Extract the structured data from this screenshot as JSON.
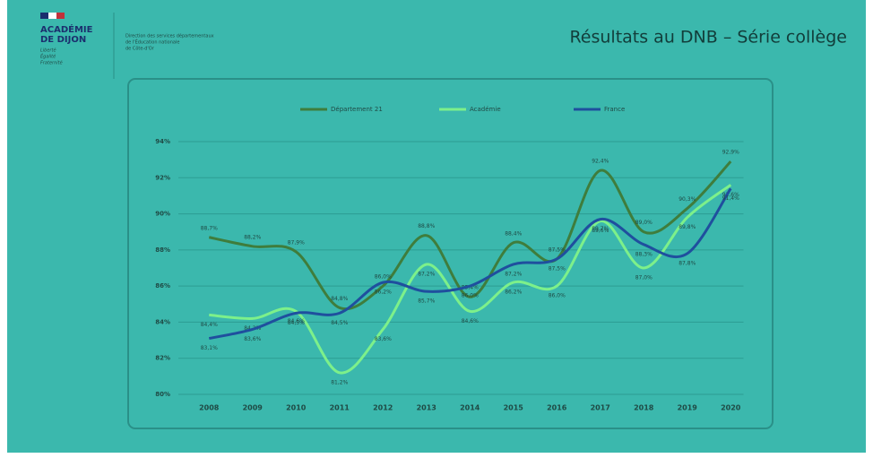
{
  "header": {
    "logo_line1": "ACADÉMIE",
    "logo_line2": "DE DIJON",
    "motto": [
      "Liberté",
      "Égalité",
      "Fraternité"
    ],
    "department": [
      "Direction des services départementaux",
      "de l'Éducation nationale",
      "de Côte-d'Or"
    ],
    "title": "Résultats au DNB – Série collège"
  },
  "chart_data": {
    "type": "line",
    "categories": [
      "2008",
      "2009",
      "2010",
      "2011",
      "2012",
      "2013",
      "2014",
      "2015",
      "2016",
      "2017",
      "2018",
      "2019",
      "2020"
    ],
    "series": [
      {
        "name": "Département 21",
        "color": "#3f7d3c",
        "values": [
          88.7,
          88.2,
          87.9,
          84.8,
          86.0,
          88.8,
          85.4,
          88.4,
          87.5,
          92.4,
          89.0,
          90.3,
          92.9
        ],
        "value_labels": [
          "88,7%",
          "88,2%",
          "87,9%",
          "84,8%",
          "86,0%",
          "88,8%",
          "85,4%",
          "88,4%",
          "87,5%",
          "92,4%",
          "89,0%",
          "90,3%",
          "92,9%"
        ]
      },
      {
        "name": "Académie",
        "color": "#7df08a",
        "values": [
          84.4,
          84.2,
          84.6,
          81.2,
          83.6,
          87.2,
          84.6,
          86.2,
          86.0,
          89.6,
          87.0,
          89.8,
          91.6
        ],
        "value_labels": [
          "84,4%",
          "84,2%",
          "84,6%",
          "81,2%",
          "83,6%",
          "87,2%",
          "84,6%",
          "86,2%",
          "86,0%",
          "89,6%",
          "87,0%",
          "89,8%",
          "91,6%"
        ]
      },
      {
        "name": "France",
        "color": "#1f4f9e",
        "values": [
          83.1,
          83.6,
          84.5,
          84.5,
          86.2,
          85.7,
          86.0,
          87.2,
          87.5,
          89.7,
          88.3,
          87.8,
          91.4
        ],
        "value_labels": [
          "83,1%",
          "83,6%",
          "84,5%",
          "84,5%",
          "86,2%",
          "85,7%",
          "86,0%",
          "87,2%",
          "87,5%",
          "89,7%",
          "88,3%",
          "87,8%",
          "91,4%"
        ]
      }
    ],
    "ylim": [
      80,
      94
    ],
    "yticks": [
      {
        "value": 80,
        "label": "80%"
      },
      {
        "value": 82,
        "label": "82%"
      },
      {
        "value": 84,
        "label": "84%"
      },
      {
        "value": 86,
        "label": "86%"
      },
      {
        "value": 88,
        "label": "88%"
      },
      {
        "value": 90,
        "label": "90%"
      },
      {
        "value": 92,
        "label": "92%"
      },
      {
        "value": 94,
        "label": "94%"
      }
    ],
    "grid": true,
    "legend": "top"
  }
}
